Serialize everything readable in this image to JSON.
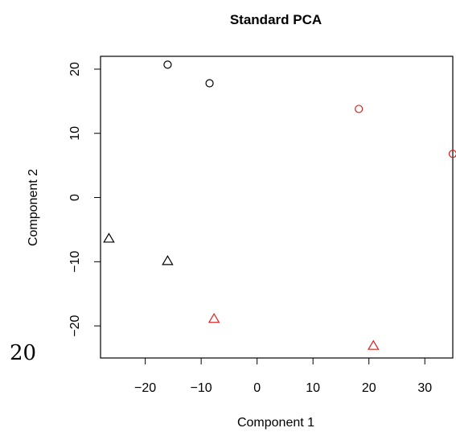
{
  "chart_data": {
    "type": "scatter",
    "title": "Standard PCA",
    "xlabel": "Component 1",
    "ylabel": "Component 2",
    "xlim": [
      -28,
      35
    ],
    "ylim": [
      -25,
      22
    ],
    "xticks": [
      -20,
      -10,
      0,
      10,
      20,
      30
    ],
    "yticks": [
      -20,
      -10,
      0,
      10,
      20
    ],
    "xtick_labels": [
      "−20",
      "−10",
      "0",
      "10",
      "20",
      "30"
    ],
    "ytick_labels": [
      "−20",
      "−10",
      "0",
      "10",
      "20"
    ],
    "grid": false,
    "points": [
      {
        "x": -16,
        "y": 20.7,
        "shape": "circle",
        "color": "#000000"
      },
      {
        "x": -8.5,
        "y": 17.8,
        "shape": "circle",
        "color": "#000000"
      },
      {
        "x": 18.2,
        "y": 13.8,
        "shape": "circle",
        "color": "#df1c1c"
      },
      {
        "x": 35,
        "y": 6.8,
        "shape": "circle",
        "color": "#df1c1c"
      },
      {
        "x": -26.5,
        "y": -6.4,
        "shape": "triangle",
        "color": "#000000"
      },
      {
        "x": -16,
        "y": -9.9,
        "shape": "triangle",
        "color": "#000000"
      },
      {
        "x": -7.7,
        "y": -18.9,
        "shape": "triangle",
        "color": "#df1c1c"
      },
      {
        "x": 20.8,
        "y": -23.1,
        "shape": "triangle",
        "color": "#df1c1c"
      }
    ]
  },
  "side_note": "20"
}
